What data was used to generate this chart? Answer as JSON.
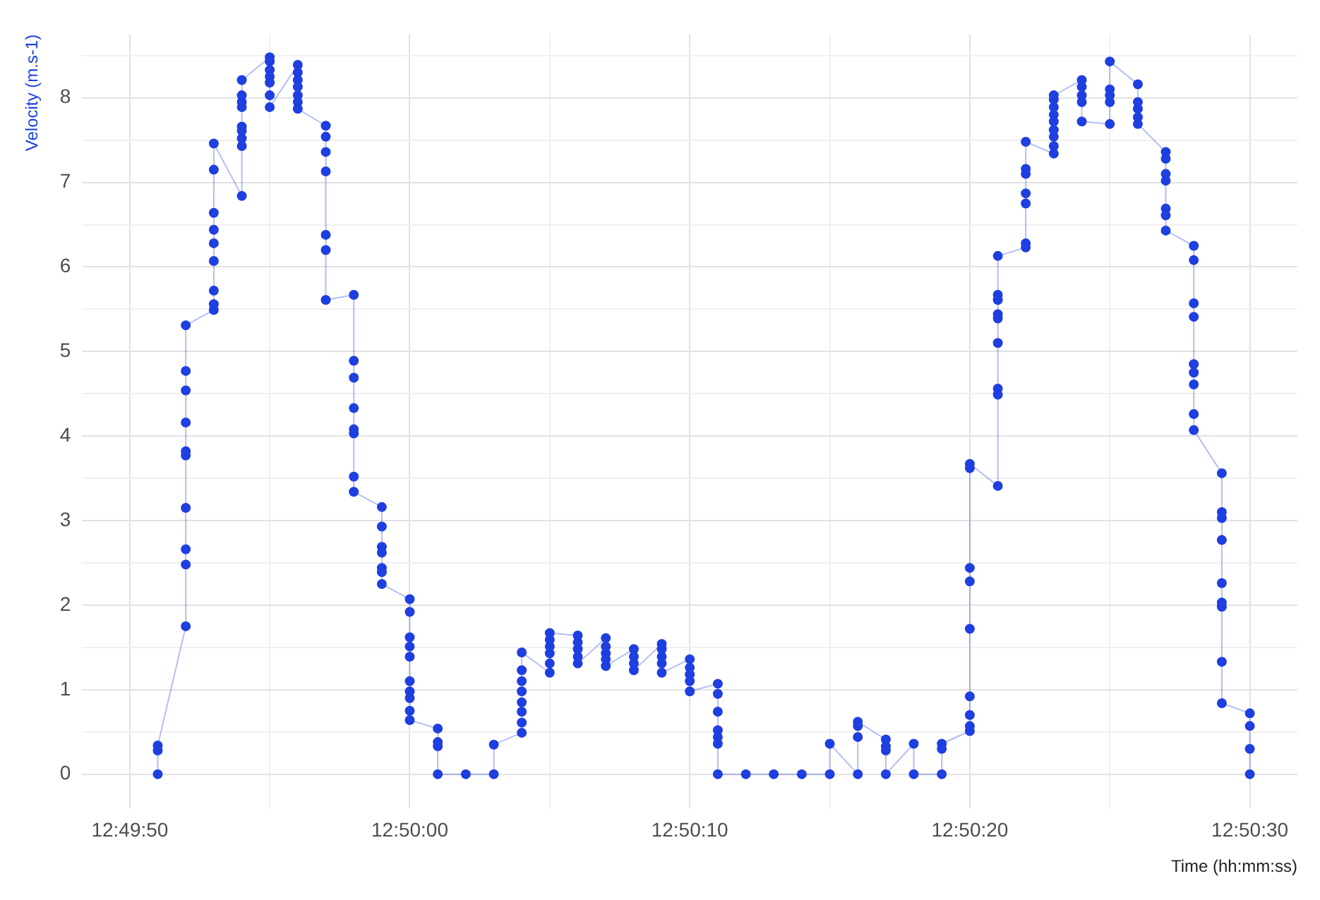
{
  "chart_data": {
    "type": "line",
    "xlabel": "Time (hh:mm:ss)",
    "ylabel": "Velocity (m.s-1)",
    "marker": "circle",
    "grid": true,
    "legend": false,
    "xlim": [
      12.830083,
      12.842139
    ],
    "xticks": [
      {
        "value": 12.830556,
        "label": "12:49:50"
      },
      {
        "value": 12.831944,
        "label": null
      },
      {
        "value": 12.833333,
        "label": "12:50:00"
      },
      {
        "value": 12.834722,
        "label": null
      },
      {
        "value": 12.836111,
        "label": "12:50:10"
      },
      {
        "value": 12.8375,
        "label": null
      },
      {
        "value": 12.838889,
        "label": "12:50:20"
      },
      {
        "value": 12.840278,
        "label": null
      },
      {
        "value": 12.841667,
        "label": "12:50:30"
      }
    ],
    "ylim": [
      -0.4,
      8.75
    ],
    "yticks": [
      0,
      {
        "value": 0.5,
        "label": null
      },
      1,
      {
        "value": 1.5,
        "label": null
      },
      2,
      {
        "value": 2.5,
        "label": null
      },
      3,
      {
        "value": 3.5,
        "label": null
      },
      4,
      {
        "value": 4.5,
        "label": null
      },
      5,
      {
        "value": 5.5,
        "label": null
      },
      6,
      {
        "value": 6.5,
        "label": null
      },
      7,
      {
        "value": 7.5,
        "label": null
      },
      8,
      {
        "value": 8.5,
        "label": null
      }
    ],
    "series": [
      {
        "color": "#1f3fe0",
        "x": [
          12.830833,
          12.830833,
          12.830833,
          12.831111,
          12.831111,
          12.831111,
          12.831111,
          12.831111,
          12.831111,
          12.831111,
          12.831111,
          12.831111,
          12.831111,
          12.831389,
          12.831389,
          12.831389,
          12.831389,
          12.831389,
          12.831389,
          12.831389,
          12.831389,
          12.831389,
          12.831667,
          12.831667,
          12.831667,
          12.831667,
          12.831667,
          12.831667,
          12.831667,
          12.831667,
          12.831667,
          12.831944,
          12.831944,
          12.831944,
          12.831944,
          12.831944,
          12.831944,
          12.831944,
          12.832222,
          12.832222,
          12.832222,
          12.832222,
          12.832222,
          12.832222,
          12.832222,
          12.8325,
          12.8325,
          12.8325,
          12.8325,
          12.8325,
          12.8325,
          12.8325,
          12.832778,
          12.832778,
          12.832778,
          12.832778,
          12.832778,
          12.832778,
          12.832778,
          12.832778,
          12.833056,
          12.833056,
          12.833056,
          12.833056,
          12.833056,
          12.833056,
          12.833056,
          12.833333,
          12.833333,
          12.833333,
          12.833333,
          12.833333,
          12.833333,
          12.833333,
          12.833333,
          12.833333,
          12.833333,
          12.833611,
          12.833611,
          12.833611,
          12.833611,
          12.833889,
          12.834167,
          12.834167,
          12.834444,
          12.834444,
          12.834444,
          12.834444,
          12.834444,
          12.834444,
          12.834444,
          12.834444,
          12.834722,
          12.834722,
          12.834722,
          12.834722,
          12.834722,
          12.834722,
          12.835,
          12.835,
          12.835,
          12.835,
          12.835,
          12.835278,
          12.835278,
          12.835278,
          12.835278,
          12.835278,
          12.835556,
          12.835556,
          12.835556,
          12.835556,
          12.835833,
          12.835833,
          12.835833,
          12.835833,
          12.835833,
          12.836111,
          12.836111,
          12.836111,
          12.836111,
          12.836111,
          12.836389,
          12.836389,
          12.836389,
          12.836389,
          12.836389,
          12.836389,
          12.836389,
          12.836667,
          12.836944,
          12.837222,
          12.8375,
          12.8375,
          12.837778,
          12.837778,
          12.837778,
          12.837778,
          12.838056,
          12.838056,
          12.838056,
          12.838056,
          12.838333,
          12.838333,
          12.838611,
          12.838611,
          12.838611,
          12.838889,
          12.838889,
          12.838889,
          12.838889,
          12.838889,
          12.838889,
          12.838889,
          12.838889,
          12.838889,
          12.839167,
          12.839167,
          12.839167,
          12.839167,
          12.839167,
          12.839167,
          12.839167,
          12.839167,
          12.839167,
          12.839444,
          12.839444,
          12.839444,
          12.839444,
          12.839444,
          12.839444,
          12.839444,
          12.839722,
          12.839722,
          12.839722,
          12.839722,
          12.839722,
          12.839722,
          12.839722,
          12.839722,
          12.839722,
          12.84,
          12.84,
          12.84,
          12.84,
          12.84,
          12.840278,
          12.840278,
          12.840278,
          12.840278,
          12.840278,
          12.840556,
          12.840556,
          12.840556,
          12.840556,
          12.840556,
          12.840833,
          12.840833,
          12.840833,
          12.840833,
          12.840833,
          12.840833,
          12.840833,
          12.841111,
          12.841111,
          12.841111,
          12.841111,
          12.841111,
          12.841111,
          12.841111,
          12.841111,
          12.841111,
          12.841389,
          12.841389,
          12.841389,
          12.841389,
          12.841389,
          12.841389,
          12.841389,
          12.841389,
          12.841389,
          12.841667,
          12.841667,
          12.841667,
          12.841667
        ],
        "values": [
          0,
          0.28,
          0.34,
          1.75,
          2.48,
          2.66,
          3.15,
          3.77,
          3.82,
          4.16,
          4.54,
          4.77,
          5.31,
          5.49,
          5.56,
          5.72,
          6.07,
          6.28,
          6.44,
          6.64,
          7.15,
          7.46,
          6.84,
          7.43,
          7.52,
          7.61,
          7.66,
          7.89,
          7.95,
          8.03,
          8.21,
          8.48,
          8.43,
          8.33,
          8.25,
          8.18,
          8.03,
          7.89,
          8.39,
          8.3,
          8.21,
          8.13,
          8.03,
          7.95,
          7.87,
          7.67,
          7.54,
          7.36,
          7.13,
          6.38,
          6.2,
          5.61,
          5.67,
          4.89,
          4.69,
          4.33,
          4.08,
          4.03,
          3.52,
          3.34,
          3.16,
          2.93,
          2.69,
          2.62,
          2.44,
          2.39,
          2.25,
          2.07,
          1.92,
          1.62,
          1.51,
          1.39,
          1.1,
          0.98,
          0.9,
          0.75,
          0.64,
          0.54,
          0.38,
          0.33,
          0,
          0,
          0,
          0.35,
          0.49,
          0.61,
          0.74,
          0.85,
          0.98,
          1.1,
          1.23,
          1.44,
          1.2,
          1.31,
          1.43,
          1.51,
          1.59,
          1.67,
          1.64,
          1.56,
          1.48,
          1.39,
          1.31,
          1.61,
          1.51,
          1.43,
          1.36,
          1.28,
          1.48,
          1.39,
          1.31,
          1.23,
          1.54,
          1.48,
          1.39,
          1.31,
          1.2,
          1.36,
          1.26,
          1.18,
          1.1,
          0.98,
          1.07,
          0.95,
          0.74,
          0.52,
          0.44,
          0.36,
          0,
          0,
          0,
          0,
          0,
          0.36,
          0,
          0.44,
          0.57,
          0.62,
          0.41,
          0.33,
          0.28,
          0,
          0.36,
          0,
          0,
          0.3,
          0.36,
          0.51,
          0.57,
          0.7,
          0.92,
          1.72,
          2.28,
          2.44,
          3.62,
          3.67,
          3.41,
          4.49,
          4.56,
          5.1,
          5.39,
          5.44,
          5.61,
          5.67,
          6.13,
          6.23,
          6.28,
          6.75,
          6.87,
          7.1,
          7.16,
          7.48,
          7.34,
          7.43,
          7.54,
          7.62,
          7.72,
          7.8,
          7.89,
          7.98,
          8.03,
          8.21,
          8.13,
          8.03,
          7.95,
          7.72,
          7.69,
          7.95,
          8.03,
          8.1,
          8.43,
          8.16,
          7.95,
          7.87,
          7.77,
          7.69,
          7.36,
          7.28,
          7.1,
          7.02,
          6.69,
          6.61,
          6.43,
          6.25,
          6.08,
          5.57,
          5.41,
          4.85,
          4.75,
          4.61,
          4.26,
          4.07,
          3.56,
          3.1,
          3.03,
          2.77,
          2.26,
          2.03,
          1.98,
          1.33,
          0.84,
          0.72,
          0.57,
          0.3,
          0
        ]
      }
    ]
  }
}
